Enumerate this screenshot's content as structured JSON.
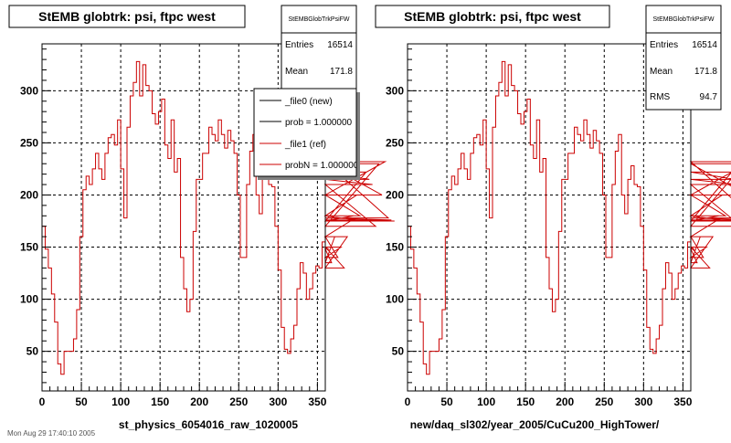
{
  "chart_data": [
    {
      "type": "line",
      "title": "StEMB globtrk: psi, ftpc west",
      "xlabel": "st_physics_6054016_raw_1020005",
      "ylabel": "",
      "xlim": [
        0,
        360
      ],
      "ylim": [
        12,
        345
      ],
      "xticks": [
        0,
        50,
        100,
        150,
        200,
        250,
        300,
        350
      ],
      "yticks": [
        50,
        100,
        150,
        200,
        250,
        300
      ],
      "grid": true,
      "stats": {
        "name": "StEMBGlobTrkPsiFW",
        "rows": [
          {
            "label": "Entries",
            "value": "16514"
          },
          {
            "label": "Mean",
            "value": "171.8"
          }
        ]
      },
      "legend": [
        {
          "label": "_file0 (new)",
          "color": "#000000"
        },
        {
          "label": "prob = 1.000000",
          "color": "#000000"
        },
        {
          "label": "_file1 (ref)",
          "color": "#cc0000"
        },
        {
          "label": "probN = 1.000000",
          "color": "#cc0000"
        }
      ],
      "series": [
        {
          "name": "_file1 (ref)",
          "color": "#cc0000",
          "bin_width": 4,
          "values": [
            170,
            148,
            130,
            105,
            78,
            38,
            28,
            50,
            50,
            50,
            62,
            90,
            160,
            205,
            218,
            210,
            225,
            240,
            225,
            215,
            240,
            255,
            258,
            248,
            272,
            225,
            178,
            265,
            295,
            308,
            328,
            295,
            325,
            305,
            300,
            278,
            268,
            280,
            292,
            248,
            235,
            272,
            222,
            235,
            140,
            110,
            88,
            100,
            165,
            215,
            215,
            240,
            240,
            265,
            258,
            252,
            272,
            258,
            245,
            262,
            252,
            240,
            200,
            140,
            140,
            210,
            242,
            258,
            200,
            182,
            215,
            228,
            210,
            208,
            170,
            128,
            73,
            52,
            48,
            62,
            75,
            110,
            135,
            125,
            100,
            110,
            125,
            132,
            130,
            155,
            150,
            148,
            135,
            160,
            140,
            150,
            130,
            160,
            175,
            180,
            200,
            180,
            175,
            222,
            215,
            210,
            170,
            230,
            200,
            232,
            178,
            176,
            175
          ]
        }
      ]
    },
    {
      "type": "line",
      "title": "StEMB globtrk: psi, ftpc west",
      "xlabel": "new/daq_sl302/year_2005/CuCu200_HighTower/",
      "ylabel": "",
      "xlim": [
        0,
        360
      ],
      "ylim": [
        12,
        345
      ],
      "xticks": [
        0,
        50,
        100,
        150,
        200,
        250,
        300,
        350
      ],
      "yticks": [
        50,
        100,
        150,
        200,
        250,
        300
      ],
      "grid": true,
      "stats": {
        "name": "StEMBGlobTrkPsiFW",
        "rows": [
          {
            "label": "Entries",
            "value": "16514"
          },
          {
            "label": "Mean",
            "value": "171.8"
          },
          {
            "label": "RMS",
            "value": "94.7"
          }
        ]
      },
      "series": [
        {
          "name": "_file1 (ref)",
          "color": "#cc0000",
          "bin_width": 4,
          "values": [
            170,
            148,
            130,
            105,
            78,
            38,
            28,
            50,
            50,
            50,
            62,
            90,
            160,
            205,
            218,
            210,
            225,
            240,
            225,
            215,
            240,
            255,
            258,
            248,
            272,
            225,
            178,
            265,
            295,
            308,
            328,
            295,
            325,
            305,
            300,
            278,
            268,
            280,
            292,
            248,
            235,
            272,
            222,
            235,
            140,
            110,
            88,
            100,
            165,
            215,
            215,
            240,
            240,
            265,
            258,
            252,
            272,
            258,
            245,
            262,
            252,
            240,
            200,
            140,
            140,
            210,
            242,
            258,
            200,
            182,
            215,
            228,
            210,
            208,
            170,
            128,
            73,
            52,
            48,
            62,
            75,
            110,
            135,
            125,
            100,
            110,
            125,
            132,
            130,
            155,
            150,
            148,
            135,
            160,
            140,
            150,
            130,
            160,
            175,
            180,
            200,
            180,
            175,
            222,
            215,
            210,
            170,
            230,
            200,
            232,
            178,
            176,
            175
          ]
        }
      ]
    }
  ],
  "footer": "Mon Aug 29 17:40:10 2005"
}
